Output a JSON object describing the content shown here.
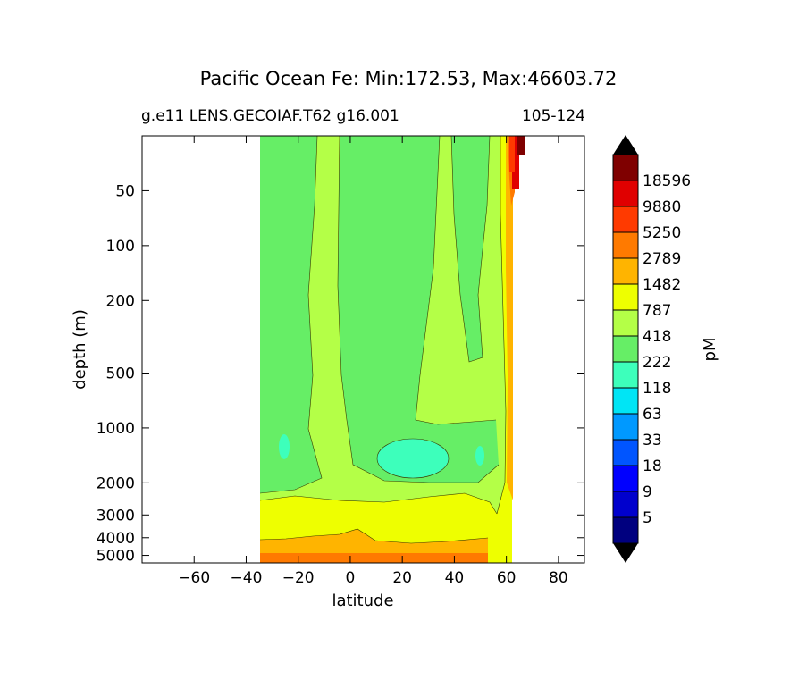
{
  "title": "Pacific Ocean Fe: Min:172.53, Max:46603.72",
  "subtitle_left": "g.e11 LENS.GECOIAF.T62 g16.001",
  "subtitle_right": "105-124",
  "chart_data": {
    "type": "heatmap",
    "subtype": "filled-contour",
    "xlabel": "latitude",
    "ylabel": "depth (m)",
    "xlim": [
      -80,
      90
    ],
    "ylim": [
      5500,
      25
    ],
    "y_scale": "log",
    "x_ticks": [
      -60,
      -40,
      -20,
      0,
      20,
      40,
      60,
      80
    ],
    "x_tick_labels": [
      "−60",
      "−40",
      "−20",
      "0",
      "20",
      "40",
      "60",
      "80"
    ],
    "y_ticks": [
      50,
      100,
      200,
      500,
      1000,
      2000,
      3000,
      4000,
      5000
    ],
    "y_tick_labels": [
      "50",
      "100",
      "200",
      "500",
      "1000",
      "2000",
      "3000",
      "4000",
      "5000"
    ],
    "data_extent_lat": [
      -35,
      67
    ],
    "colorbar": {
      "label": "pM",
      "levels": [
        "5",
        "9",
        "18",
        "33",
        "63",
        "118",
        "222",
        "418",
        "787",
        "1482",
        "2789",
        "5250",
        "9880",
        "18596"
      ],
      "colors": [
        "#00007f",
        "#0000cd",
        "#0000ff",
        "#0055ff",
        "#0099ff",
        "#00e5f5",
        "#3dffbb",
        "#66ee66",
        "#b4ff47",
        "#eeff00",
        "#ffb400",
        "#ff7a00",
        "#ff3a00",
        "#e00000",
        "#7f0000"
      ],
      "extend": "both"
    }
  }
}
